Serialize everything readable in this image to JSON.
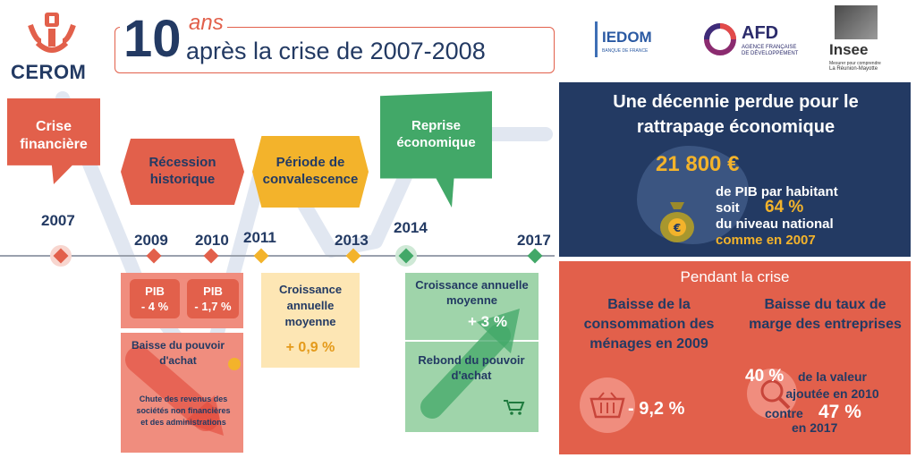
{
  "header": {
    "logo_text": "CEROM",
    "title_big": "10",
    "title_ans": "ans",
    "title_rest": "après la crise de 2007-2008",
    "partners": {
      "iedom": "IEDOM",
      "iedom_sub": "BANQUE DE FRANCE",
      "afd": "AFD",
      "afd_sub1": "AGENCE FRANÇAISE",
      "afd_sub2": "DE DÉVELOPPEMENT",
      "insee": "Insee",
      "insee_sub1": "Mesurer pour comprendre",
      "insee_sub2": "La Réunion-Mayotte"
    }
  },
  "timeline": {
    "phases": {
      "crise": "Crise financière",
      "recession": "Récession historique",
      "convalescence": "Période de convalescence",
      "reprise": "Reprise économique"
    },
    "years": {
      "y2007": "2007",
      "y2009": "2009",
      "y2010": "2010",
      "y2011": "2011",
      "y2013": "2013",
      "y2014": "2014",
      "y2017": "2017"
    },
    "recession_block": {
      "pib1_label": "PIB",
      "pib1_value": "- 4 %",
      "pib2_label": "PIB",
      "pib2_value": "- 1,7 %",
      "pouvoir": "Baisse du pouvoir d'achat",
      "revenus": "Chute des revenus des sociétés non financières et des administrations"
    },
    "convalescence_block": {
      "label": "Croissance annuelle moyenne",
      "value": "+ 0,9 %"
    },
    "reprise_block": {
      "label": "Croissance annuelle moyenne",
      "value": "+ 3 %",
      "rebond": "Rebond du pouvoir d'achat"
    }
  },
  "decade_panel": {
    "title": "Une décennie perdue pour le rattrapage économique",
    "pib_value": "21 800 €",
    "line1": "de PIB par habitant",
    "line2_pre": "soit",
    "line2_pct": "64 %",
    "line3": "du niveau national",
    "line4": "comme en 2007"
  },
  "crisis_panel": {
    "title": "Pendant la crise",
    "left_title": "Baisse de la consommation des ménages en 2009",
    "left_value": "- 9,2 %",
    "right_title": "Baisse du taux de marge des entreprises",
    "right_pct1": "40 %",
    "right_text1": "de la valeur ajoutée en 2010",
    "right_contre": "contre",
    "right_pct2": "47 %",
    "right_text2": "en 2017"
  },
  "colors": {
    "red": "#e2604b",
    "orange": "#f3b32b",
    "green": "#42a868",
    "navy": "#233a63",
    "light_red": "#f08d7e",
    "light_orange": "#fde6b4",
    "light_green": "#9fd4aa"
  }
}
